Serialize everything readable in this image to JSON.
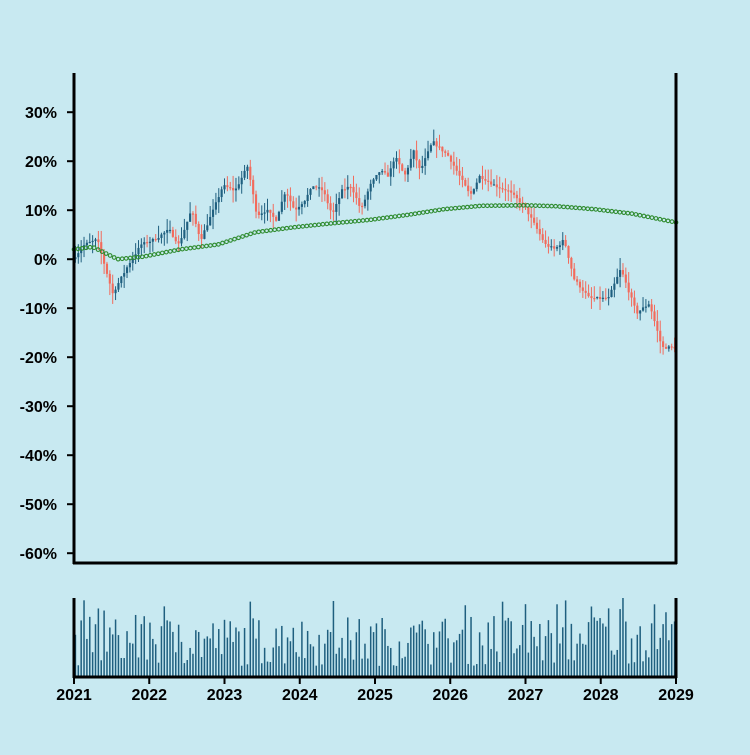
{
  "chart_data": [
    {
      "type": "candlestick",
      "title": "",
      "xlabel": "",
      "ylabel": "",
      "x_range": [
        "2021-01-01",
        "2029-01-01"
      ],
      "ylim": [
        -62,
        38
      ],
      "y_ticks": [
        30,
        20,
        10,
        0,
        -10,
        -20,
        -30,
        -40,
        -50,
        -60
      ],
      "y_tick_labels": [
        "30%",
        "20%",
        "10%",
        "0%",
        "-10%",
        "-20%",
        "-30%",
        "-40%",
        "-50%",
        "-60%"
      ],
      "grid": false,
      "legend": "none",
      "up_color": "#1f5f7f",
      "down_color": "#f26b5c",
      "close_path": [
        [
          "2021-01-01",
          0
        ],
        [
          "2021-03-01",
          3
        ],
        [
          "2021-05-01",
          4
        ],
        [
          "2021-07-15",
          -7
        ],
        [
          "2021-10-01",
          -1
        ],
        [
          "2021-12-01",
          3
        ],
        [
          "2022-02-01",
          4
        ],
        [
          "2022-04-15",
          6
        ],
        [
          "2022-06-01",
          3
        ],
        [
          "2022-08-01",
          10
        ],
        [
          "2022-09-15",
          4
        ],
        [
          "2022-11-15",
          10
        ],
        [
          "2023-01-01",
          15
        ],
        [
          "2023-03-01",
          14
        ],
        [
          "2023-05-01",
          19
        ],
        [
          "2023-06-15",
          9
        ],
        [
          "2023-08-01",
          10
        ],
        [
          "2023-09-15",
          8
        ],
        [
          "2023-11-01",
          14
        ],
        [
          "2023-12-15",
          10
        ],
        [
          "2024-02-01",
          12
        ],
        [
          "2024-03-15",
          15
        ],
        [
          "2024-05-01",
          14
        ],
        [
          "2024-06-15",
          9
        ],
        [
          "2024-08-01",
          14
        ],
        [
          "2024-09-15",
          15
        ],
        [
          "2024-11-01",
          10
        ],
        [
          "2024-12-15",
          15
        ],
        [
          "2025-02-01",
          18
        ],
        [
          "2025-03-15",
          17
        ],
        [
          "2025-04-15",
          21
        ],
        [
          "2025-06-01",
          17
        ],
        [
          "2025-07-15",
          22
        ],
        [
          "2025-08-15",
          18
        ],
        [
          "2025-10-15",
          24
        ],
        [
          "2026-01-01",
          21
        ],
        [
          "2026-04-15",
          13
        ],
        [
          "2026-06-01",
          17
        ],
        [
          "2026-08-15",
          15
        ],
        [
          "2026-10-15",
          14
        ],
        [
          "2027-01-01",
          11
        ],
        [
          "2027-04-15",
          3
        ],
        [
          "2027-06-01",
          2
        ],
        [
          "2027-07-15",
          4
        ],
        [
          "2027-09-01",
          -4
        ],
        [
          "2027-11-15",
          -8
        ],
        [
          "2028-02-15",
          -8
        ],
        [
          "2028-04-15",
          -2
        ],
        [
          "2028-07-01",
          -11
        ],
        [
          "2028-09-01",
          -9
        ],
        [
          "2028-11-01",
          -18
        ],
        [
          "2029-01-01",
          -18
        ]
      ],
      "moving_average": {
        "color": "#2e8b2e",
        "points": [
          [
            "2021-01-01",
            2
          ],
          [
            "2021-04-01",
            2.5
          ],
          [
            "2021-08-01",
            0
          ],
          [
            "2021-12-01",
            0.5
          ],
          [
            "2022-06-01",
            2
          ],
          [
            "2022-12-01",
            3
          ],
          [
            "2023-06-01",
            5.5
          ],
          [
            "2023-12-01",
            6.5
          ],
          [
            "2024-06-01",
            7.3
          ],
          [
            "2024-12-01",
            8
          ],
          [
            "2025-06-01",
            9
          ],
          [
            "2025-12-01",
            10.2
          ],
          [
            "2026-06-01",
            10.9
          ],
          [
            "2027-01-01",
            11
          ],
          [
            "2027-06-01",
            10.8
          ],
          [
            "2027-12-01",
            10.2
          ],
          [
            "2028-06-01",
            9.3
          ],
          [
            "2029-01-01",
            7.5
          ]
        ]
      }
    },
    {
      "type": "bar",
      "title": "",
      "xlabel": "",
      "ylabel": "",
      "color": "#1f5f7f",
      "x_tick_labels": [
        "2021",
        "2022",
        "2023",
        "2024",
        "2025",
        "2026",
        "2027",
        "2028",
        "2029"
      ],
      "grid": false,
      "legend": "none"
    }
  ]
}
